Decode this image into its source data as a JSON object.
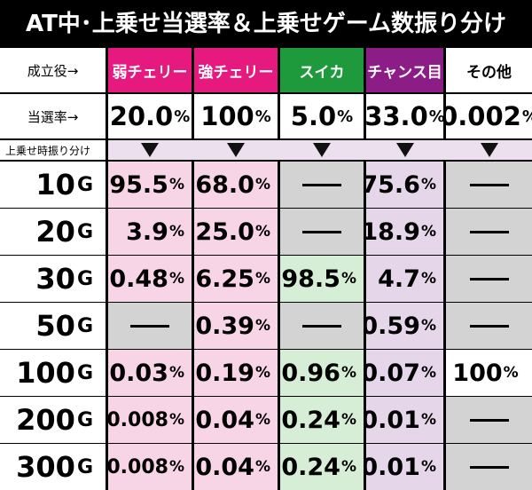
{
  "title": "AT中･上乗せ当選率＆上乗せゲーム数振り分け",
  "header": {
    "row_label": "成立役→",
    "columns": [
      {
        "label": "弱チェリー",
        "color": "#e6197f",
        "cell_color": "#f7d4e6"
      },
      {
        "label": "強チェリー",
        "color": "#e6197f",
        "cell_color": "#f7d4e6"
      },
      {
        "label": "スイカ",
        "color": "#1e9a3c",
        "cell_color": "#d7eed6"
      },
      {
        "label": "チャンス目",
        "color": "#8c1d86",
        "cell_color": "#e6d6ea"
      },
      {
        "label": "その他",
        "color": "#ffffff",
        "cell_color": "#ffffff"
      }
    ]
  },
  "rate_row": {
    "label": "当選率→",
    "values": [
      "20.0",
      "100",
      "5.0",
      "33.0",
      "0.002"
    ],
    "unit": "%"
  },
  "sub_header": {
    "label": "上乗せ時振り分け",
    "arrow_icon": "down-triangle-icon"
  },
  "dash_icon": "em-dash-icon",
  "gray_color": "#d3d3d3",
  "rows": [
    {
      "game": "10",
      "unit": "G",
      "cells": [
        {
          "v": "95.5",
          "u": "%"
        },
        {
          "v": "68.0",
          "u": "%"
        },
        null,
        {
          "v": "75.6",
          "u": "%"
        },
        null
      ]
    },
    {
      "game": "20",
      "unit": "G",
      "cells": [
        {
          "v": "3.9",
          "u": "%"
        },
        {
          "v": "25.0",
          "u": "%"
        },
        null,
        {
          "v": "18.9",
          "u": "%"
        },
        null
      ]
    },
    {
      "game": "30",
      "unit": "G",
      "cells": [
        {
          "v": "0.48",
          "u": "%"
        },
        {
          "v": "6.25",
          "u": "%"
        },
        {
          "v": "98.5",
          "u": "%"
        },
        {
          "v": "4.7",
          "u": "%"
        },
        null
      ]
    },
    {
      "game": "50",
      "unit": "G",
      "cells": [
        null,
        {
          "v": "0.39",
          "u": "%"
        },
        null,
        {
          "v": "0.59",
          "u": "%"
        },
        null
      ]
    },
    {
      "game": "100",
      "unit": "G",
      "cells": [
        {
          "v": "0.03",
          "u": "%"
        },
        {
          "v": "0.19",
          "u": "%"
        },
        {
          "v": "0.96",
          "u": "%"
        },
        {
          "v": "0.07",
          "u": "%"
        },
        {
          "v": "100",
          "u": "%"
        }
      ]
    },
    {
      "game": "200",
      "unit": "G",
      "cells": [
        {
          "v": "0.008",
          "u": "%"
        },
        {
          "v": "0.04",
          "u": "%"
        },
        {
          "v": "0.24",
          "u": "%"
        },
        {
          "v": "0.01",
          "u": "%"
        },
        null
      ]
    },
    {
      "game": "300",
      "unit": "G",
      "cells": [
        {
          "v": "0.008",
          "u": "%"
        },
        {
          "v": "0.04",
          "u": "%"
        },
        {
          "v": "0.24",
          "u": "%"
        },
        {
          "v": "0.01",
          "u": "%"
        },
        null
      ]
    }
  ]
}
